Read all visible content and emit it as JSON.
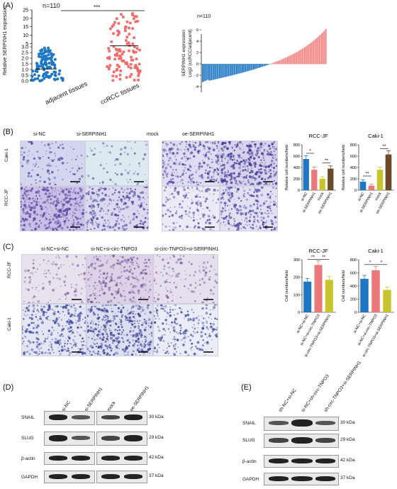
{
  "panels": {
    "A": "(A)",
    "B": "(B)",
    "C": "(C)",
    "D": "(D)",
    "E": "(E)"
  },
  "panelA": {
    "n1": "n=110",
    "n2": "n=110",
    "ylabel": "Relative SERPINH1 expression",
    "sig": "***",
    "cats": [
      "adjacent tissues",
      "ccRCC tissues"
    ],
    "yticks": [
      "0.0",
      "0.5",
      "1.0",
      "1.5",
      "2.0",
      "2.5",
      "3.0",
      "5",
      "10",
      "15",
      "20",
      "25"
    ],
    "wf_ylabel1": "SERPINH1 expression",
    "wf_ylabel2": "Log2 (ccRCC/adjacent)",
    "wf_yticks": [
      "6",
      "4",
      "2",
      "0",
      "-2",
      "-4"
    ]
  },
  "panelB": {
    "cols": [
      "si-NC",
      "si-SERPINH1",
      "mock",
      "oe-SERPINH1"
    ],
    "rows": [
      "Caki-1",
      "RCC-JF"
    ]
  },
  "panelC": {
    "cols": [
      "si-NC+si-NC",
      "si-NC+si-circ-TNPO3",
      "si-circ-TNPO3+si-SERPINH1"
    ],
    "rows": [
      "RCC-JF",
      "Caki-1"
    ]
  },
  "panelD": {
    "lanes": [
      "si-NC",
      "si-SERPINH1",
      "mock",
      "oe-SERPINH1"
    ],
    "proteins": [
      "SNAIL",
      "SLUG",
      "β-actin",
      "GAPDH"
    ],
    "kda": [
      "30 kDa",
      "29 kDa",
      "42 kDa",
      "37 kDa"
    ]
  },
  "panelE": {
    "lanes": [
      "sh-NC+si-NC",
      "si-NC+sh-circ-TNPO3",
      "sh-circ-TNPO3+si-SERPINH1"
    ],
    "proteins": [
      "SNAIL",
      "SLUG",
      "β-actin",
      "GAPDH"
    ],
    "kda": [
      "30 kDa",
      "29 kDa",
      "42 kDa",
      "37 kDa"
    ]
  },
  "chart_data": [
    {
      "type": "bar",
      "title": "RCC-JF",
      "ylabel": "Relative cell numbers/field",
      "ylim": [
        0,
        800
      ],
      "yticks": [
        "0",
        "200",
        "400",
        "600",
        "800"
      ],
      "categories": [
        "si-NC",
        "si-SERPINH1",
        "mock",
        "oe-SERPINH1"
      ],
      "values": [
        550,
        360,
        200,
        380
      ],
      "colors": [
        "#1f77c4",
        "#e8787a",
        "#c8c42c",
        "#6b4a2a"
      ],
      "sig": [
        "*",
        "**"
      ]
    },
    {
      "type": "bar",
      "title": "Caki-1",
      "ylabel": "Relative cell numbers/field",
      "ylim": [
        0,
        800
      ],
      "yticks": [
        "0",
        "200",
        "400",
        "600",
        "800"
      ],
      "categories": [
        "si-NC",
        "si-SERPINH1",
        "mock",
        "oe-SERPINH1"
      ],
      "values": [
        150,
        80,
        360,
        630
      ],
      "colors": [
        "#1f77c4",
        "#e8787a",
        "#c8c42c",
        "#6b4a2a"
      ],
      "sig": [
        "**",
        "**"
      ]
    },
    {
      "type": "bar",
      "title": "RCC-JF",
      "ylabel": "Cell numbers/field",
      "ylim": [
        0,
        300
      ],
      "yticks": [
        "0",
        "100",
        "200",
        "300"
      ],
      "categories": [
        "si-NC+si-NC",
        "si-NC+si-circ-TNPO3",
        "si-circ-TNPO3+si-SERPINH1"
      ],
      "values": [
        175,
        270,
        185
      ],
      "colors": [
        "#1f77c4",
        "#e8787a",
        "#c8c42c"
      ],
      "sig": [
        "**",
        "**"
      ]
    },
    {
      "type": "bar",
      "title": "Caki-1",
      "ylabel": "Cell numbers/field",
      "ylim": [
        0,
        800
      ],
      "yticks": [
        "0",
        "200",
        "400",
        "600",
        "800"
      ],
      "categories": [
        "si-NC+si-NC",
        "si-NC+si-circ-TNPO3",
        "si-circ-TNPO3+si-SERPINH1"
      ],
      "values": [
        510,
        640,
        340
      ],
      "colors": [
        "#1f77c4",
        "#e8787a",
        "#c8c42c"
      ],
      "sig": [
        "*",
        "*"
      ]
    }
  ]
}
